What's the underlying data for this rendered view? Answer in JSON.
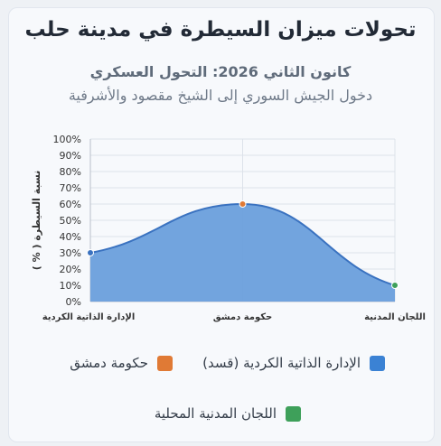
{
  "header": {
    "title": "تحولات ميزان السيطرة في مدينة حلب",
    "subtitle": "كانون الثاني 2026: التحول العسكري",
    "description": "دخول الجيش السوري إلى الشيخ مقصود والأشرفية"
  },
  "chart_data": {
    "type": "area",
    "categories": [
      "الإدارة الذاتية الكردية",
      "حكومة دمشق",
      "اللجان المدنية"
    ],
    "values": [
      30,
      60,
      10
    ],
    "ylabel": "نسبة السيطرة ( % )",
    "ylim": [
      0,
      100
    ],
    "ytick_step": 10,
    "yticks": [
      "0%",
      "10%",
      "20%",
      "30%",
      "40%",
      "50%",
      "60%",
      "70%",
      "80%",
      "90%",
      "100%"
    ],
    "grid": true,
    "fill_color": "#6a9fdc",
    "line_color": "#3a72c0",
    "point_colors": [
      "#3a72c0",
      "#e07a35",
      "#3ea05a"
    ],
    "legend": [
      {
        "label": "الإدارة الذاتية الكردية (قسد)",
        "color": "#3b82d4"
      },
      {
        "label": "حكومة دمشق",
        "color": "#e07a35"
      },
      {
        "label": "اللجان المدنية المحلية",
        "color": "#3ea05a"
      }
    ],
    "legend_position": "bottom"
  }
}
